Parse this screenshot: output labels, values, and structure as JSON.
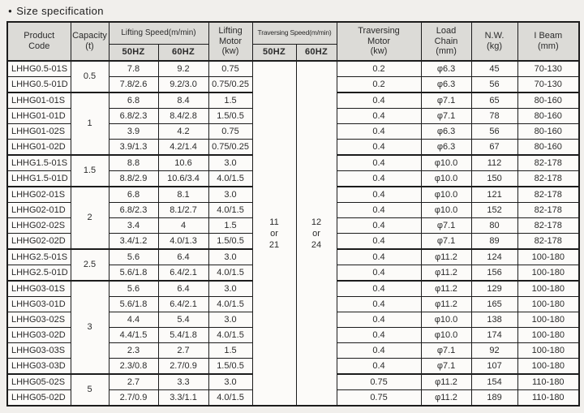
{
  "page": {
    "title": "Size specification",
    "bullet": "●"
  },
  "colors": {
    "page_bg": "#f1efec",
    "header_bg": "#dcdbd7",
    "cell_bg": "#fcfbf9",
    "border": "#1c1c1c",
    "text": "#2b2b2b"
  },
  "table": {
    "header": {
      "product_code": "Product\nCode",
      "capacity": "Capacity\n(t)",
      "lifting_speed": "Lifting Speed(m/min)",
      "lifting_50hz": "50HZ",
      "lifting_60hz": "60HZ",
      "lifting_motor": "Lifting\nMotor\n(kw)",
      "traversing_speed": "Traversing Speed(m/min)",
      "traversing_50hz": "50HZ",
      "traversing_60hz": "60HZ",
      "traversing_motor": "Traversing\nMotor\n(kw)",
      "load_chain": "Load\nChain\n(mm)",
      "net_weight": "N.W.\n(kg)",
      "i_beam": "I Beam\n(mm)"
    },
    "traversing_speed_values": {
      "hz50": "11\nor\n21",
      "hz60": "12\nor\n24"
    },
    "groups": [
      {
        "capacity": "0.5",
        "rows": [
          {
            "product": "LHHG0.5-01S",
            "lift_50hz": "7.8",
            "lift_60hz": "9.2",
            "lift_motor": "0.75",
            "trav_motor": "0.2",
            "load_chain": "φ6.3",
            "nw": "45",
            "i_beam": "70-130"
          },
          {
            "product": "LHHG0.5-01D",
            "lift_50hz": "7.8/2.6",
            "lift_60hz": "9.2/3.0",
            "lift_motor": "0.75/0.25",
            "trav_motor": "0.2",
            "load_chain": "φ6.3",
            "nw": "56",
            "i_beam": "70-130"
          }
        ]
      },
      {
        "capacity": "1",
        "rows": [
          {
            "product": "LHHG01-01S",
            "lift_50hz": "6.8",
            "lift_60hz": "8.4",
            "lift_motor": "1.5",
            "trav_motor": "0.4",
            "load_chain": "φ7.1",
            "nw": "65",
            "i_beam": "80-160"
          },
          {
            "product": "LHHG01-01D",
            "lift_50hz": "6.8/2.3",
            "lift_60hz": "8.4/2.8",
            "lift_motor": "1.5/0.5",
            "trav_motor": "0.4",
            "load_chain": "φ7.1",
            "nw": "78",
            "i_beam": "80-160"
          },
          {
            "product": "LHHG01-02S",
            "lift_50hz": "3.9",
            "lift_60hz": "4.2",
            "lift_motor": "0.75",
            "trav_motor": "0.4",
            "load_chain": "φ6.3",
            "nw": "56",
            "i_beam": "80-160"
          },
          {
            "product": "LHHG01-02D",
            "lift_50hz": "3.9/1.3",
            "lift_60hz": "4.2/1.4",
            "lift_motor": "0.75/0.25",
            "trav_motor": "0.4",
            "load_chain": "φ6.3",
            "nw": "67",
            "i_beam": "80-160"
          }
        ]
      },
      {
        "capacity": "1.5",
        "rows": [
          {
            "product": "LHHG1.5-01S",
            "lift_50hz": "8.8",
            "lift_60hz": "10.6",
            "lift_motor": "3.0",
            "trav_motor": "0.4",
            "load_chain": "φ10.0",
            "nw": "112",
            "i_beam": "82-178"
          },
          {
            "product": "LHHG1.5-01D",
            "lift_50hz": "8.8/2.9",
            "lift_60hz": "10.6/3.4",
            "lift_motor": "4.0/1.5",
            "trav_motor": "0.4",
            "load_chain": "φ10.0",
            "nw": "150",
            "i_beam": "82-178"
          }
        ]
      },
      {
        "capacity": "2",
        "rows": [
          {
            "product": "LHHG02-01S",
            "lift_50hz": "6.8",
            "lift_60hz": "8.1",
            "lift_motor": "3.0",
            "trav_motor": "0.4",
            "load_chain": "φ10.0",
            "nw": "121",
            "i_beam": "82-178"
          },
          {
            "product": "LHHG02-01D",
            "lift_50hz": "6.8/2.3",
            "lift_60hz": "8.1/2.7",
            "lift_motor": "4.0/1.5",
            "trav_motor": "0.4",
            "load_chain": "φ10.0",
            "nw": "152",
            "i_beam": "82-178"
          },
          {
            "product": "LHHG02-02S",
            "lift_50hz": "3.4",
            "lift_60hz": "4",
            "lift_motor": "1.5",
            "trav_motor": "0.4",
            "load_chain": "φ7.1",
            "nw": "80",
            "i_beam": "82-178"
          },
          {
            "product": "LHHG02-02D",
            "lift_50hz": "3.4/1.2",
            "lift_60hz": "4.0/1.3",
            "lift_motor": "1.5/0.5",
            "trav_motor": "0.4",
            "load_chain": "φ7.1",
            "nw": "89",
            "i_beam": "82-178"
          }
        ]
      },
      {
        "capacity": "2.5",
        "rows": [
          {
            "product": "LHHG2.5-01S",
            "lift_50hz": "5.6",
            "lift_60hz": "6.4",
            "lift_motor": "3.0",
            "trav_motor": "0.4",
            "load_chain": "φ11.2",
            "nw": "124",
            "i_beam": "100-180"
          },
          {
            "product": "LHHG2.5-01D",
            "lift_50hz": "5.6/1.8",
            "lift_60hz": "6.4/2.1",
            "lift_motor": "4.0/1.5",
            "trav_motor": "0.4",
            "load_chain": "φ11.2",
            "nw": "156",
            "i_beam": "100-180"
          }
        ]
      },
      {
        "capacity": "3",
        "rows": [
          {
            "product": "LHHG03-01S",
            "lift_50hz": "5.6",
            "lift_60hz": "6.4",
            "lift_motor": "3.0",
            "trav_motor": "0.4",
            "load_chain": "φ11.2",
            "nw": "129",
            "i_beam": "100-180"
          },
          {
            "product": "LHHG03-01D",
            "lift_50hz": "5.6/1.8",
            "lift_60hz": "6.4/2.1",
            "lift_motor": "4.0/1.5",
            "trav_motor": "0.4",
            "load_chain": "φ11.2",
            "nw": "165",
            "i_beam": "100-180"
          },
          {
            "product": "LHHG03-02S",
            "lift_50hz": "4.4",
            "lift_60hz": "5.4",
            "lift_motor": "3.0",
            "trav_motor": "0.4",
            "load_chain": "φ10.0",
            "nw": "138",
            "i_beam": "100-180"
          },
          {
            "product": "LHHG03-02D",
            "lift_50hz": "4.4/1.5",
            "lift_60hz": "5.4/1.8",
            "lift_motor": "4.0/1.5",
            "trav_motor": "0.4",
            "load_chain": "φ10.0",
            "nw": "174",
            "i_beam": "100-180"
          },
          {
            "product": "LHHG03-03S",
            "lift_50hz": "2.3",
            "lift_60hz": "2.7",
            "lift_motor": "1.5",
            "trav_motor": "0.4",
            "load_chain": "φ7.1",
            "nw": "92",
            "i_beam": "100-180"
          },
          {
            "product": "LHHG03-03D",
            "lift_50hz": "2.3/0.8",
            "lift_60hz": "2.7/0.9",
            "lift_motor": "1.5/0.5",
            "trav_motor": "0.4",
            "load_chain": "φ7.1",
            "nw": "107",
            "i_beam": "100-180"
          }
        ]
      },
      {
        "capacity": "5",
        "rows": [
          {
            "product": "LHHG05-02S",
            "lift_50hz": "2.7",
            "lift_60hz": "3.3",
            "lift_motor": "3.0",
            "trav_motor": "0.75",
            "load_chain": "φ11.2",
            "nw": "154",
            "i_beam": "110-180"
          },
          {
            "product": "LHHG05-02D",
            "lift_50hz": "2.7/0.9",
            "lift_60hz": "3.3/1.1",
            "lift_motor": "4.0/1.5",
            "trav_motor": "0.75",
            "load_chain": "φ11.2",
            "nw": "189",
            "i_beam": "110-180"
          }
        ]
      }
    ]
  }
}
